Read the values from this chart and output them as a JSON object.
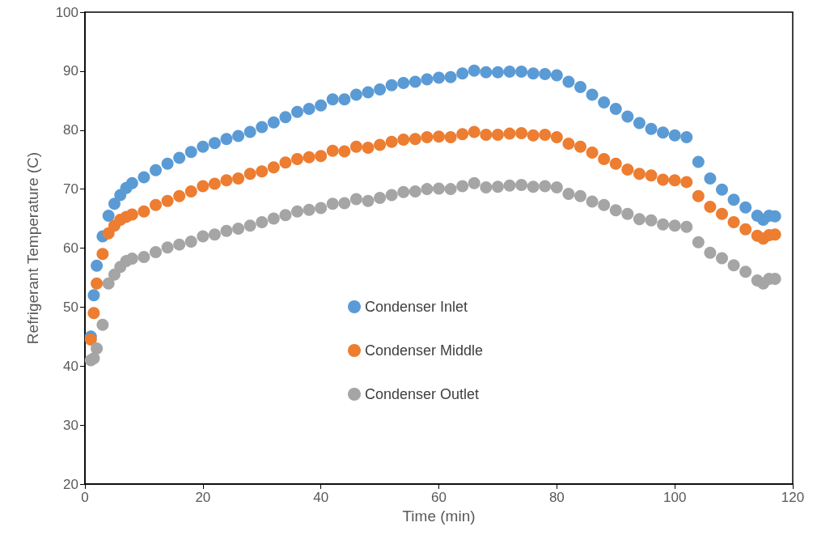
{
  "chart_data": {
    "type": "scatter",
    "xlabel": "Time (min)",
    "ylabel": "Refrigerant Temperature (C)",
    "xlim": [
      0,
      120
    ],
    "xticks": [
      0,
      20,
      40,
      60,
      80,
      100,
      120
    ],
    "ylim": [
      20,
      100
    ],
    "yticks": [
      20,
      30,
      40,
      50,
      60,
      70,
      80,
      90,
      100
    ],
    "grid": false,
    "legend": "center",
    "marker": "circle",
    "x": [
      1,
      1.5,
      2,
      3,
      4,
      5,
      6,
      7,
      8,
      10,
      12,
      14,
      16,
      18,
      20,
      22,
      24,
      26,
      28,
      30,
      32,
      34,
      36,
      38,
      40,
      42,
      44,
      46,
      48,
      50,
      52,
      54,
      56,
      58,
      60,
      62,
      64,
      66,
      68,
      70,
      72,
      74,
      76,
      78,
      80,
      82,
      84,
      86,
      88,
      90,
      92,
      94,
      96,
      98,
      100,
      102,
      104,
      106,
      108,
      110,
      112,
      114,
      115,
      116,
      117
    ],
    "series": [
      {
        "name": "Condenser Inlet",
        "color": "#5b9bd5",
        "values": [
          45,
          52,
          57,
          62,
          65.5,
          67.5,
          69,
          70.2,
          71,
          72,
          73.2,
          74.3,
          75.3,
          76.3,
          77.2,
          77.8,
          78.5,
          79,
          79.7,
          80.5,
          81.3,
          82.2,
          83.1,
          83.6,
          84.2,
          85.2,
          85.2,
          86,
          86.4,
          86.9,
          87.6,
          88,
          88.2,
          88.6,
          88.9,
          89,
          89.6,
          90.1,
          89.8,
          89.8,
          89.9,
          89.9,
          89.6,
          89.5,
          89.3,
          88.2,
          87.3,
          86,
          84.7,
          83.6,
          82.3,
          81.2,
          80.2,
          79.6,
          79.1,
          78.8,
          74.6,
          71.8,
          69.9,
          68.2,
          66.9,
          65.5,
          64.8,
          65.5,
          65.4
        ]
      },
      {
        "name": "Condenser Middle",
        "color": "#ed7d31",
        "values": [
          44.5,
          49,
          54,
          59,
          62.5,
          63.8,
          64.8,
          65.3,
          65.7,
          66.2,
          67.3,
          68,
          68.8,
          69.6,
          70.5,
          70.9,
          71.5,
          71.8,
          72.6,
          73,
          73.7,
          74.5,
          75.1,
          75.4,
          75.6,
          76.5,
          76.4,
          77.2,
          77,
          77.5,
          78,
          78.4,
          78.5,
          78.8,
          78.9,
          78.8,
          79.3,
          79.7,
          79.2,
          79.2,
          79.4,
          79.5,
          79.1,
          79.2,
          78.8,
          77.7,
          77.2,
          76.2,
          75.1,
          74.3,
          73.3,
          72.6,
          72.3,
          71.6,
          71.5,
          71.2,
          68.8,
          67,
          65.8,
          64.4,
          63.2,
          62.1,
          61.6,
          62.2,
          62.3
        ]
      },
      {
        "name": "Condenser Outlet",
        "color": "#a5a5a5",
        "values": [
          41,
          41.3,
          43,
          47,
          54,
          55.5,
          56.8,
          57.8,
          58.2,
          58.5,
          59.3,
          60.1,
          60.6,
          61.1,
          62,
          62.3,
          62.9,
          63.3,
          63.8,
          64.4,
          65,
          65.6,
          66.2,
          66.5,
          66.8,
          67.5,
          67.6,
          68.3,
          68,
          68.5,
          69,
          69.5,
          69.6,
          70,
          70.1,
          70,
          70.5,
          71,
          70.3,
          70.4,
          70.6,
          70.7,
          70.4,
          70.5,
          70.3,
          69.2,
          68.8,
          67.9,
          67.3,
          66.4,
          65.8,
          64.9,
          64.7,
          64,
          63.8,
          63.6,
          61,
          59.2,
          58.3,
          57.1,
          56,
          54.5,
          54,
          54.8,
          54.8
        ]
      }
    ]
  }
}
